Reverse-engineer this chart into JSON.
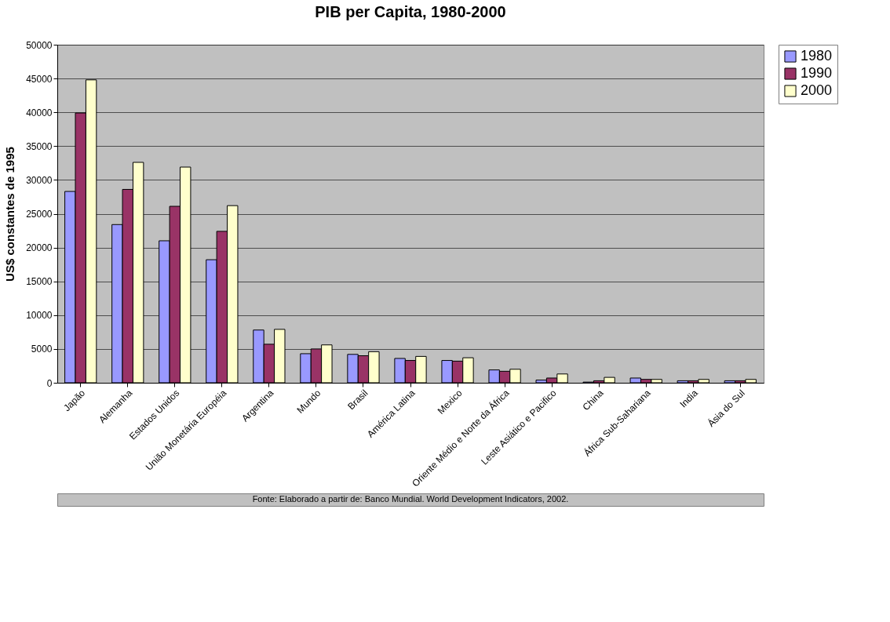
{
  "chart_data": {
    "type": "bar",
    "title": "PIB per Capita, 1980-2000",
    "ylabel": "US$ constantes de 1995",
    "categories": [
      "Japão",
      "Alemanha",
      "Estados Unidos",
      "União Monetária Européia",
      "Argentina",
      "Mundo",
      "Brasil",
      "América Latina",
      "Mexico",
      "Oriente Médio e Norte da África",
      "Leste Asiático e Pacifico",
      "China",
      "África Sub-Sahariana",
      "India",
      "Ásia do Sul"
    ],
    "series": [
      {
        "name": "1980",
        "color": "#9999ff",
        "values": [
          28300,
          23400,
          21000,
          18200,
          7800,
          4300,
          4200,
          3600,
          3300,
          1900,
          400,
          100,
          700,
          300,
          300
        ]
      },
      {
        "name": "1990",
        "color": "#993366",
        "values": [
          39900,
          28600,
          26100,
          22400,
          5700,
          5000,
          4000,
          3300,
          3200,
          1700,
          700,
          300,
          500,
          300,
          300
        ]
      },
      {
        "name": "2000",
        "color": "#ffffcc",
        "values": [
          44800,
          32600,
          31900,
          26200,
          7900,
          5600,
          4600,
          3900,
          3700,
          2000,
          1300,
          800,
          500,
          500,
          500
        ]
      }
    ],
    "ylim": [
      0,
      50000
    ],
    "yticks": [
      0,
      5000,
      10000,
      15000,
      20000,
      25000,
      30000,
      35000,
      40000,
      45000,
      50000
    ],
    "grid": "y",
    "legend": "right",
    "annotations": [
      "Fonte: Elaborado a partir de: Banco Mundial. World Development Indicators, 2002."
    ]
  }
}
